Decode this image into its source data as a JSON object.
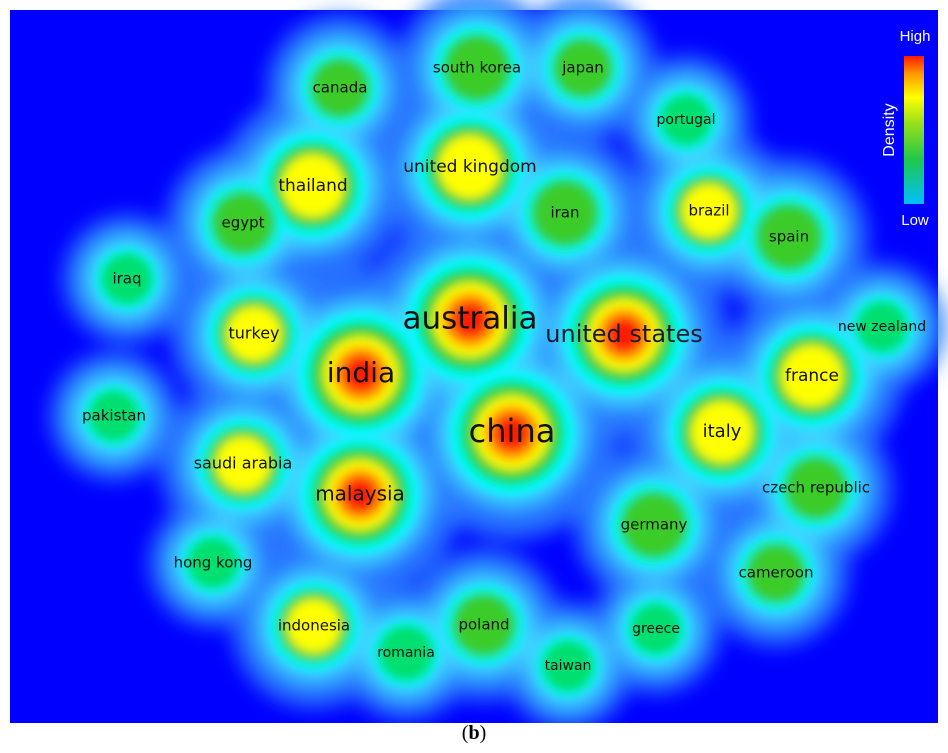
{
  "figure": {
    "caption_label": "b"
  },
  "legend": {
    "high_label": "High",
    "low_label": "Low",
    "title": "Density"
  },
  "colors": {
    "background": "#0000ff",
    "ramp": [
      "#00ffff",
      "#00e070",
      "#3bcc2b",
      "#ffff00",
      "#ff9900",
      "#ff1a00"
    ]
  },
  "countries": [
    {
      "name": "south korea",
      "density": 0.55
    },
    {
      "name": "japan",
      "density": 0.45
    },
    {
      "name": "canada",
      "density": 0.45
    },
    {
      "name": "portugal",
      "density": 0.3
    },
    {
      "name": "united kingdom",
      "density": 0.78
    },
    {
      "name": "thailand",
      "density": 0.78
    },
    {
      "name": "egypt",
      "density": 0.5
    },
    {
      "name": "iran",
      "density": 0.55
    },
    {
      "name": "brazil",
      "density": 0.6
    },
    {
      "name": "spain",
      "density": 0.55
    },
    {
      "name": "iraq",
      "density": 0.3
    },
    {
      "name": "australia",
      "density": 1.0
    },
    {
      "name": "united states",
      "density": 0.95
    },
    {
      "name": "turkey",
      "density": 0.62
    },
    {
      "name": "india",
      "density": 1.0
    },
    {
      "name": "new zealand",
      "density": 0.3
    },
    {
      "name": "france",
      "density": 0.75
    },
    {
      "name": "pakistan",
      "density": 0.3
    },
    {
      "name": "china",
      "density": 1.0
    },
    {
      "name": "italy",
      "density": 0.75
    },
    {
      "name": "saudi arabia",
      "density": 0.62
    },
    {
      "name": "malaysia",
      "density": 0.92
    },
    {
      "name": "czech republic",
      "density": 0.5
    },
    {
      "name": "germany",
      "density": 0.55
    },
    {
      "name": "hong kong",
      "density": 0.3
    },
    {
      "name": "cameroon",
      "density": 0.45
    },
    {
      "name": "indonesia",
      "density": 0.6
    },
    {
      "name": "poland",
      "density": 0.5
    },
    {
      "name": "greece",
      "density": 0.3
    },
    {
      "name": "romania",
      "density": 0.35
    },
    {
      "name": "taiwan",
      "density": 0.3
    }
  ]
}
